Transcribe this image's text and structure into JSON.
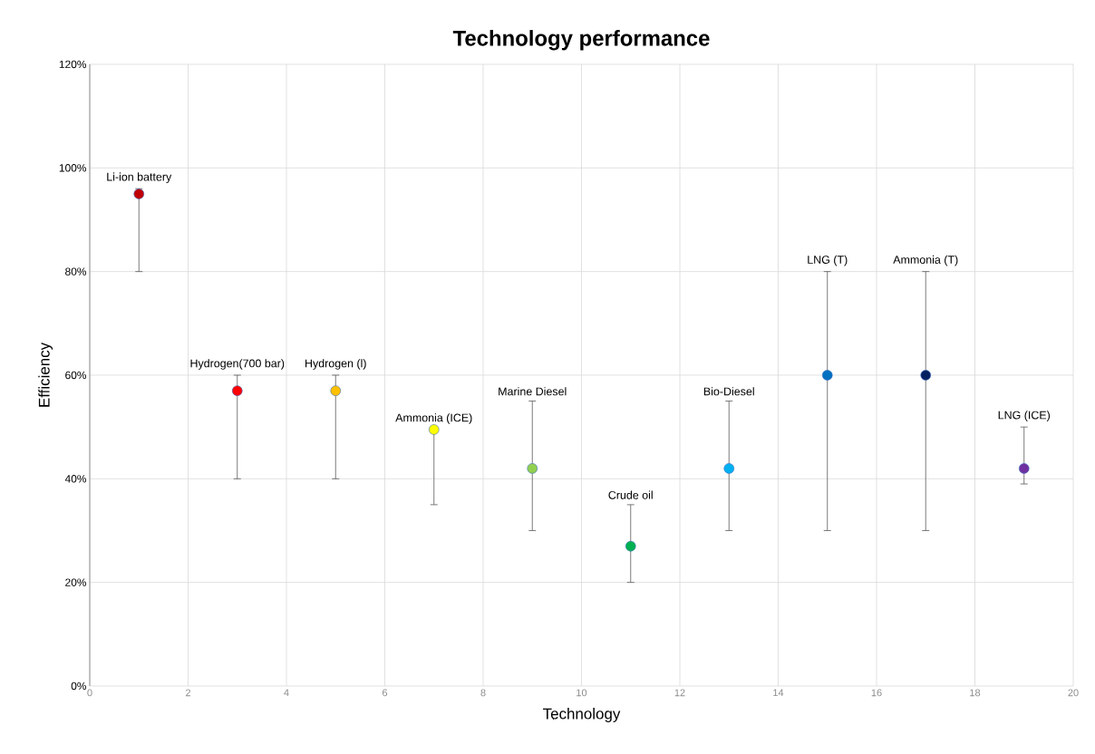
{
  "chart_data": {
    "type": "scatter",
    "title": "Technology performance",
    "xlabel": "Technology",
    "ylabel": "Efficiency",
    "x": [
      1,
      3,
      5,
      7,
      9,
      11,
      13,
      15,
      17,
      19
    ],
    "values": [
      95,
      57,
      57,
      49.5,
      42,
      27,
      42,
      60,
      60,
      42
    ],
    "errors": [
      [
        80,
        96
      ],
      [
        40,
        60
      ],
      [
        40,
        60
      ],
      [
        35,
        49.5
      ],
      [
        30,
        55
      ],
      [
        20,
        35
      ],
      [
        30,
        55
      ],
      [
        30,
        80
      ],
      [
        30,
        80
      ],
      [
        39,
        50
      ]
    ],
    "colors": [
      "#c00000",
      "#ff0000",
      "#ffc000",
      "#ffff00",
      "#92d050",
      "#00b050",
      "#00b0f0",
      "#0070c0",
      "#002060",
      "#7030a0"
    ],
    "xlim": [
      0,
      20
    ],
    "xticks": [
      0,
      2,
      4,
      6,
      8,
      10,
      12,
      14,
      16,
      18,
      20
    ],
    "ylim": [
      0,
      120
    ],
    "yticks": [
      {
        "value": 0,
        "label": "0%"
      },
      {
        "value": 20,
        "label": "20%"
      },
      {
        "value": 40,
        "label": "40%"
      },
      {
        "value": 60,
        "label": "60%"
      },
      {
        "value": 80,
        "label": "80%"
      },
      {
        "value": 100,
        "label": "100%"
      },
      {
        "value": 120,
        "label": "120%"
      }
    ],
    "grid": true,
    "marker": "circle",
    "annotations": [
      {
        "text": "Li-ion battery",
        "x": 1,
        "y": 96
      },
      {
        "text": "Hydrogen(700 bar)",
        "x": 3,
        "y": 60
      },
      {
        "text": "Hydrogen (l)",
        "x": 5,
        "y": 60
      },
      {
        "text": "Ammonia (ICE)",
        "x": 7,
        "y": 49.5
      },
      {
        "text": "Marine Diesel",
        "x": 9,
        "y": 55
      },
      {
        "text": "Crude oil",
        "x": 11,
        "y": 35
      },
      {
        "text": "Bio-Diesel",
        "x": 13,
        "y": 55
      },
      {
        "text": "LNG (T)",
        "x": 15,
        "y": 80
      },
      {
        "text": "Ammonia (T)",
        "x": 17,
        "y": 80
      },
      {
        "text": "LNG (ICE)",
        "x": 19,
        "y": 50
      }
    ]
  }
}
